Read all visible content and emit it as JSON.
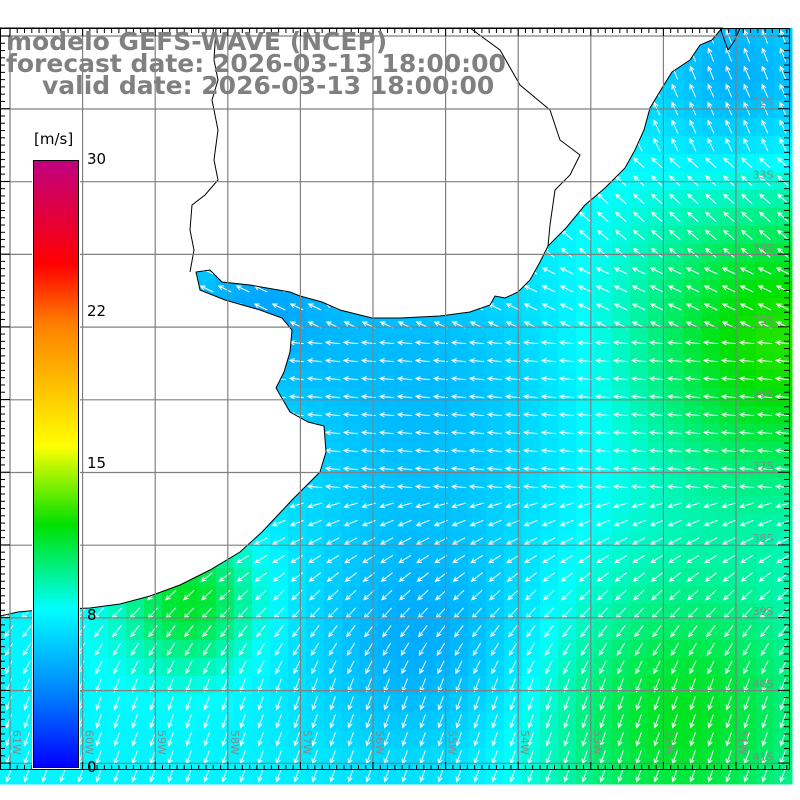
{
  "title": {
    "model": "modelo GEFS-WAVE (NCEP)",
    "forecast": "forecast date: 2026-03-13 18:00:00",
    "valid": "valid date: 2026-03-13 18:00:00"
  },
  "colorbar": {
    "unit": "[m/s]",
    "labels": [
      "30",
      "22",
      "15",
      "8",
      "0"
    ],
    "min": 0,
    "max": 30,
    "colors": [
      "#c0007f",
      "#ff0000",
      "#ff8000",
      "#ffff00",
      "#00e000",
      "#00ffff",
      "#0080ff",
      "#0000ff"
    ]
  },
  "axes": {
    "lon_labels": [
      "61W",
      "60W",
      "59W",
      "58W",
      "57W",
      "56W",
      "55W",
      "54W",
      "53W",
      "52W",
      "51W"
    ],
    "lat_labels": [
      "32S",
      "33S",
      "34S",
      "35S",
      "36S",
      "37S",
      "38S",
      "39S",
      "40S",
      "41S"
    ]
  }
}
